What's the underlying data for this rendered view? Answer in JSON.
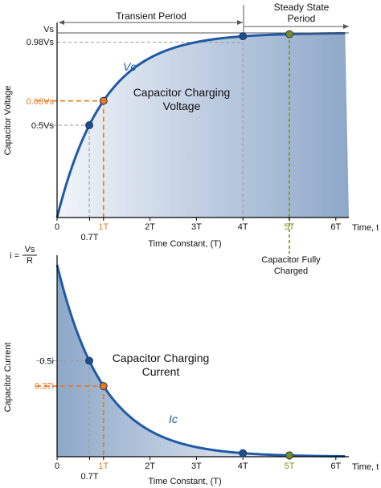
{
  "chart_data": [
    {
      "type": "area",
      "title": "Capacitor Charging Voltage",
      "ylabel": "Capacitor Voltage",
      "xlabel": "Time Constant, (T)",
      "x_axis_end_label": "Time, t",
      "series": [
        {
          "name": "Vc",
          "formula": "1 - exp(-t/T)",
          "x_range": [
            0,
            6.2
          ]
        }
      ],
      "ylim": [
        0,
        1
      ],
      "xlim": [
        0,
        6.2
      ],
      "x_ticks": [
        {
          "x": 0,
          "label": "0"
        },
        {
          "x": 0.7,
          "label": "0.7T"
        },
        {
          "x": 1,
          "label": "1T",
          "highlight": "orange"
        },
        {
          "x": 2,
          "label": "2T"
        },
        {
          "x": 3,
          "label": "3T"
        },
        {
          "x": 4,
          "label": "4T"
        },
        {
          "x": 5,
          "label": "5T",
          "highlight": "olive"
        },
        {
          "x": 6,
          "label": "6T"
        }
      ],
      "y_labels": [
        {
          "y": 1.0,
          "label": "Vs"
        },
        {
          "y": 0.98,
          "label": "0.98Vs"
        },
        {
          "y": 0.63,
          "label": "0.63Vs",
          "highlight": "orange"
        },
        {
          "y": 0.5,
          "label": "0.5Vs"
        }
      ],
      "points": [
        {
          "x": 0.693,
          "y": 0.5,
          "color": "navy"
        },
        {
          "x": 1,
          "y": 0.632,
          "color": "orange"
        },
        {
          "x": 4,
          "y": 0.982,
          "color": "navy"
        },
        {
          "x": 5,
          "y": 0.993,
          "color": "olive"
        }
      ],
      "annotations": {
        "transient": "Transient Period",
        "steady_line1": "Steady State",
        "steady_line2": "Period",
        "body_line1": "Capacitor Charging",
        "body_line2": "Voltage",
        "charged_line1": "Capacitor Fully",
        "charged_line2": "Charged"
      }
    },
    {
      "type": "area",
      "title": "Capacitor Charging Current",
      "ylabel": "Capacitor Current",
      "xlabel": "Time Constant, (T)",
      "x_axis_end_label": "Time, t",
      "series": [
        {
          "name": "Ic",
          "formula": "exp(-t/T)",
          "x_range": [
            0,
            6.2
          ]
        }
      ],
      "ylim": [
        0,
        1
      ],
      "xlim": [
        0,
        6.2
      ],
      "x_ticks": [
        {
          "x": 0,
          "label": "0"
        },
        {
          "x": 0.7,
          "label": "0.7T"
        },
        {
          "x": 1,
          "label": "1T",
          "highlight": "orange"
        },
        {
          "x": 2,
          "label": "2T"
        },
        {
          "x": 3,
          "label": "3T"
        },
        {
          "x": 4,
          "label": "4T"
        },
        {
          "x": 5,
          "label": "5T",
          "highlight": "olive"
        },
        {
          "x": 6,
          "label": "6T"
        }
      ],
      "y_labels": [
        {
          "y": 0.5,
          "label": "0.5i"
        },
        {
          "y": 0.37,
          "label": "0.37i",
          "highlight": "orange"
        }
      ],
      "i_label": {
        "prefix": "i =",
        "numerator": "Vs",
        "denominator": "R"
      },
      "points": [
        {
          "x": 0.693,
          "y": 0.5,
          "color": "navy"
        },
        {
          "x": 1,
          "y": 0.368,
          "color": "orange"
        },
        {
          "x": 4,
          "y": 0.018,
          "color": "navy"
        },
        {
          "x": 5,
          "y": 0.007,
          "color": "olive"
        }
      ],
      "annotations": {
        "body_line1": "Capacitor Charging",
        "body_line2": "Current"
      }
    }
  ],
  "colors": {
    "curve": "#1f5aa6",
    "fill_light": "#eef2f8",
    "fill_dark": "#8ea8c9",
    "orange": "#e8781e",
    "olive": "#7a8c1e",
    "navy_point": "#1f4e8c",
    "axis": "#000000",
    "guide": "#9a9a9a",
    "text": "#111111"
  }
}
